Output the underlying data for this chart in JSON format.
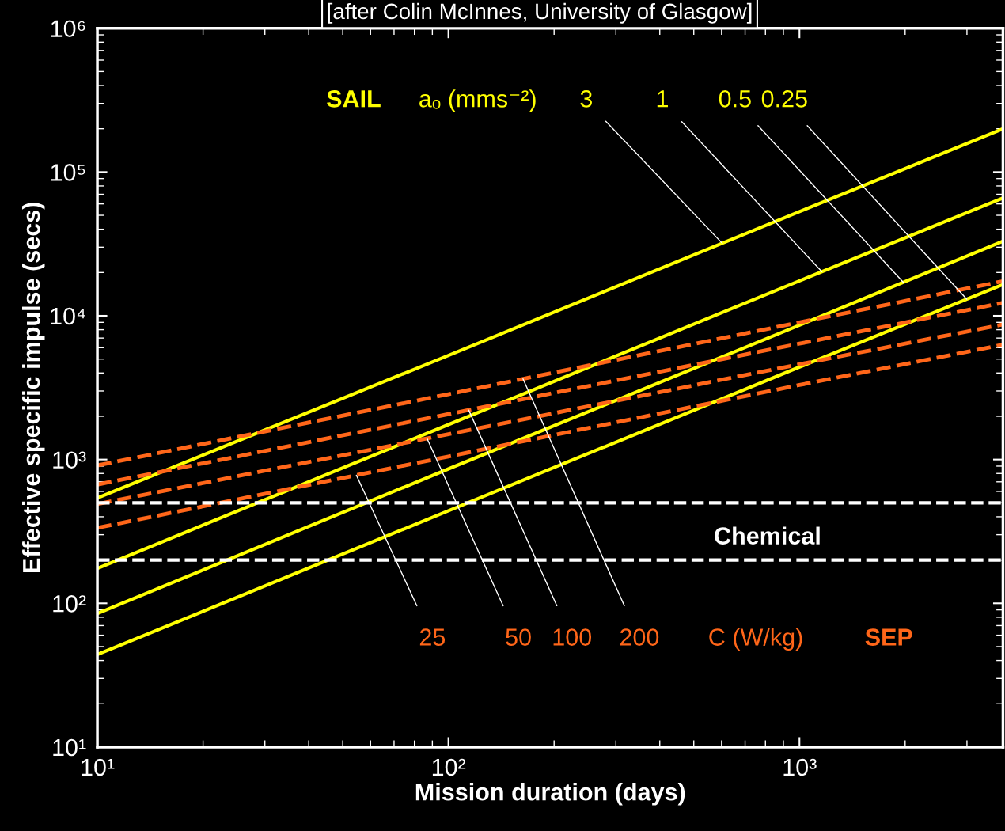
{
  "chart_data": {
    "type": "line",
    "title": "[after Colin McInnes, University of Glasgow]",
    "xlabel": "Mission duration (days)",
    "ylabel": "Effective specific impulse (secs)",
    "log": "xy",
    "grid": false,
    "legend": false,
    "xlim": [
      10,
      3800
    ],
    "ylim": [
      10,
      1000000
    ],
    "xticks": [
      {
        "value": 10,
        "label": "10¹"
      },
      {
        "value": 100,
        "label": "10²"
      },
      {
        "value": 1000,
        "label": "10³"
      }
    ],
    "yticks": [
      {
        "value": 10,
        "label": "10¹"
      },
      {
        "value": 100,
        "label": "10²"
      },
      {
        "value": 1000,
        "label": "10³"
      },
      {
        "value": 10000,
        "label": "10⁴"
      },
      {
        "value": 100000,
        "label": "10⁵"
      },
      {
        "value": 1000000,
        "label": "10⁶"
      }
    ],
    "x": [
      10,
      100,
      1000,
      3800
    ],
    "series": [
      {
        "name": "3",
        "color": "#ffff00",
        "line_style": "solid",
        "values": [
          540,
          5300,
          53000,
          200000
        ]
      },
      {
        "name": "1",
        "color": "#ffff00",
        "line_style": "solid",
        "values": [
          175,
          1750,
          17500,
          66000
        ]
      },
      {
        "name": "0.5",
        "color": "#ffff00",
        "line_style": "solid",
        "values": [
          85,
          860,
          8600,
          33000
        ]
      },
      {
        "name": "0.25",
        "color": "#ffff00",
        "line_style": "solid",
        "values": [
          44,
          440,
          4400,
          16500
        ]
      },
      {
        "name": "200",
        "color": "#ff6619",
        "line_style": "dashed",
        "values": [
          910,
          2850,
          9000,
          17400
        ]
      },
      {
        "name": "100",
        "color": "#ff6619",
        "line_style": "dashed",
        "values": [
          670,
          2070,
          6400,
          12300
        ]
      },
      {
        "name": "50",
        "color": "#ff6619",
        "line_style": "dashed",
        "values": [
          490,
          1500,
          4600,
          8700
        ]
      },
      {
        "name": "25",
        "color": "#ff6619",
        "line_style": "dashed",
        "values": [
          335,
          1050,
          3300,
          6300
        ]
      }
    ],
    "ref_lines": [
      {
        "axis": "y",
        "value": 500,
        "label": "Chemical",
        "color": "#ffffff",
        "line_style": "dashed"
      },
      {
        "axis": "y",
        "value": 200,
        "label": null,
        "color": "#ffffff",
        "line_style": "dashed"
      }
    ],
    "annotations": [
      "SAIL",
      "aₒ (mms⁻²)",
      "C (W/kg)",
      "SEP"
    ]
  }
}
